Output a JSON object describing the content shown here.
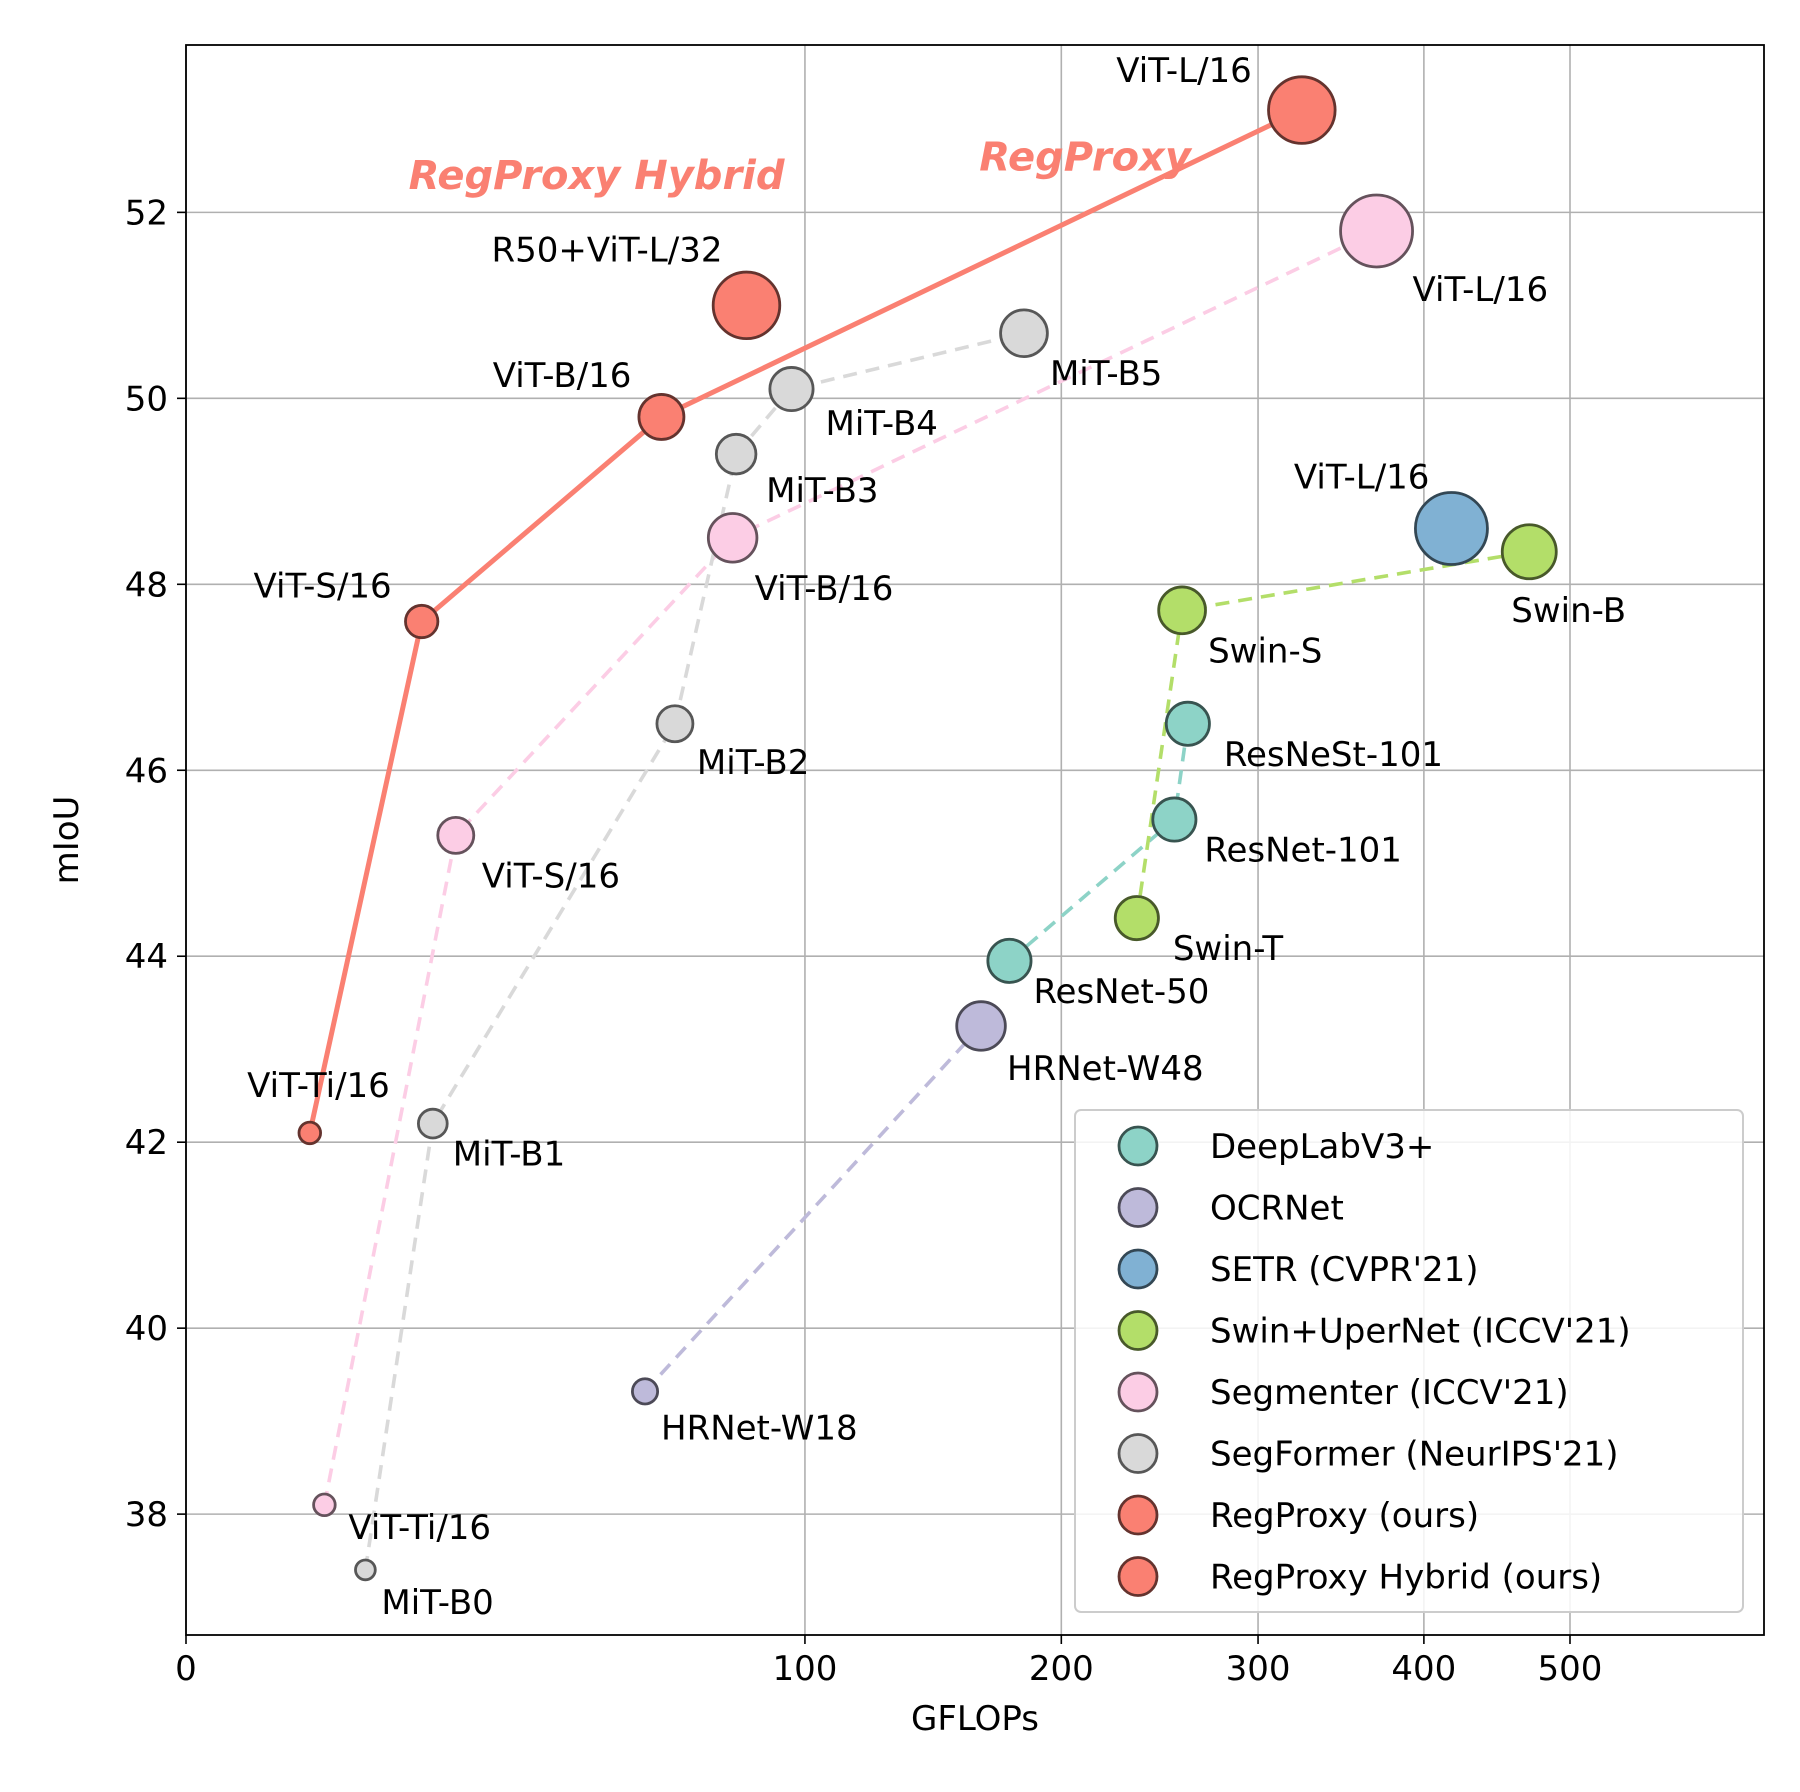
{
  "chart_data": {
    "type": "scatter",
    "xlabel": "GFLOPs",
    "ylabel": "mIoU",
    "x_scale": "sqrt",
    "xlim": [
      0,
      650
    ],
    "ylim": [
      36.7,
      53.8
    ],
    "xticks": [
      0,
      100,
      200,
      300,
      400,
      500
    ],
    "yticks": [
      38,
      40,
      42,
      44,
      46,
      48,
      50,
      52
    ],
    "grid": true,
    "legend_position": "lower-right",
    "annotations": [
      {
        "text": "RegProxy Hybrid",
        "x": 44,
        "y": 52.25,
        "color": "#fa8072"
      },
      {
        "text": "RegProxy",
        "x": 211,
        "y": 52.45,
        "color": "#fa8072"
      }
    ],
    "series": [
      {
        "name": "DeepLabV3+",
        "color": "#8dd3c7",
        "line": "dashed",
        "points": [
          {
            "label": "ResNet-50",
            "x": 177,
            "y": 43.95,
            "size": 1.2
          },
          {
            "label": "ResNet-101",
            "x": 255,
            "y": 45.47,
            "size": 1.2
          },
          {
            "label": "ResNeSt-101",
            "x": 262,
            "y": 46.5,
            "size": 1.2
          }
        ]
      },
      {
        "name": "OCRNet",
        "color": "#bebada",
        "line": "dashed",
        "points": [
          {
            "label": "HRNet-W18",
            "x": 55,
            "y": 39.32,
            "size": 0.7
          },
          {
            "label": "HRNet-W48",
            "x": 165,
            "y": 43.25,
            "size": 1.35
          }
        ]
      },
      {
        "name": "SETR (CVPR'21)",
        "color": "#80b1d3",
        "line": "none",
        "points": [
          {
            "label": "ViT-L/16",
            "x": 418,
            "y": 48.6,
            "size": 2.0
          }
        ]
      },
      {
        "name": "Swin+UperNet (ICCV'21)",
        "color": "#b3de69",
        "line": "dashed",
        "points": [
          {
            "label": "Swin-T",
            "x": 236,
            "y": 44.41,
            "size": 1.2
          },
          {
            "label": "Swin-S",
            "x": 259,
            "y": 47.72,
            "size": 1.3
          },
          {
            "label": "Swin-B",
            "x": 471,
            "y": 48.35,
            "size": 1.5
          }
        ]
      },
      {
        "name": "Segmenter (ICCV'21)",
        "color": "#fccde5",
        "line": "dashed",
        "points": [
          {
            "label": "ViT-Ti/16",
            "x": 5,
            "y": 38.1,
            "size": 0.6
          },
          {
            "label": "ViT-S/16",
            "x": 19,
            "y": 45.3,
            "size": 1.0
          },
          {
            "label": "ViT-B/16",
            "x": 78,
            "y": 48.5,
            "size": 1.35
          },
          {
            "label": "ViT-L/16",
            "x": 370,
            "y": 51.8,
            "size": 2.0
          }
        ]
      },
      {
        "name": "SegFormer (NeurIPS'21)",
        "color": "#d9d9d9",
        "line": "dashed",
        "points": [
          {
            "label": "MiT-B0",
            "x": 8.4,
            "y": 37.4,
            "size": 0.55
          },
          {
            "label": "MiT-B1",
            "x": 15.9,
            "y": 42.2,
            "size": 0.8
          },
          {
            "label": "MiT-B2",
            "x": 62.4,
            "y": 46.5,
            "size": 1.0
          },
          {
            "label": "MiT-B3",
            "x": 79,
            "y": 49.4,
            "size": 1.1
          },
          {
            "label": "MiT-B4",
            "x": 95.7,
            "y": 50.1,
            "size": 1.2
          },
          {
            "label": "MiT-B5",
            "x": 183.3,
            "y": 50.7,
            "size": 1.3
          }
        ]
      },
      {
        "name": "RegProxy (ours)",
        "color": "#fa8072",
        "line": "solid",
        "points": [
          {
            "label": "ViT-Ti/16",
            "x": 4,
            "y": 42.1,
            "size": 0.6
          },
          {
            "label": "ViT-S/16",
            "x": 14.5,
            "y": 47.6,
            "size": 0.9
          },
          {
            "label": "ViT-B/16",
            "x": 59,
            "y": 49.8,
            "size": 1.25
          },
          {
            "label": "ViT-L/16",
            "x": 325,
            "y": 53.1,
            "size": 1.85
          }
        ]
      },
      {
        "name": "RegProxy Hybrid (ours)",
        "color": "#fa8072",
        "line": "none",
        "points": [
          {
            "label": "R50+ViT-L/32",
            "x": 82,
            "y": 51.0,
            "size": 1.85
          }
        ]
      }
    ]
  }
}
